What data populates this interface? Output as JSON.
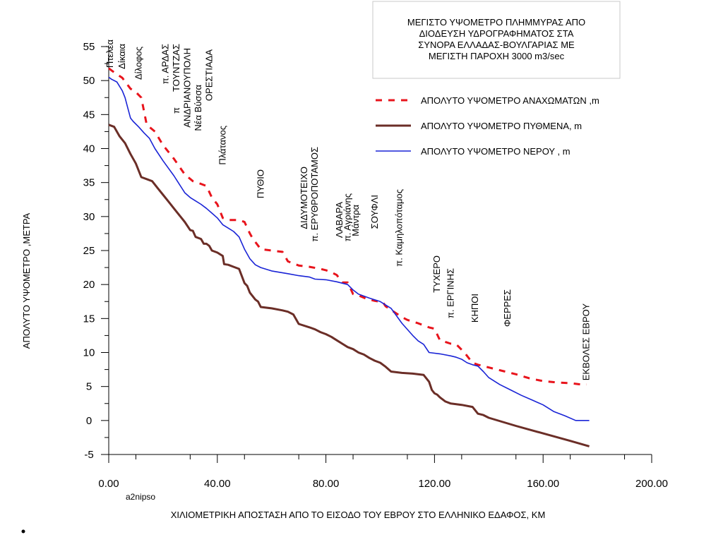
{
  "chart_data": {
    "type": "line",
    "title_lines": [
      "ΜΕΓΙΣΤΟ ΥΨΟΜΕΤΡΟ ΠΛΗΜΜΥΡΑΣ   ΑΠΟ",
      "ΔΙΟΔΕΥΣΗ   ΥΔΡΟΓΡΑΦΗΜΑΤΟΣ    ΣΤΑ",
      "ΣΥΝΟΡΑ ΕΛΛΑΔΑΣ-ΒΟΥΛΓΑΡΙΑΣ  ΜΕ",
      "ΜΕΓΙΣΤΗ  ΠΑΡΟΧΗ    3000   m3/sec"
    ],
    "xlabel": "ΧΙΛΙΟΜΕΤΡΙΚΗ ΑΠΟΣΤΑΣΗ ΑΠΟ ΤΟ  ΕΙΣΟΔΟ ΤΟΥ ΕΒΡΟΥ ΣΤΟ ΕΛΛΗΝΙΚΟ ΕΔΑΦΟΣ, ΚΜ",
    "ylabel": "ΑΠΟΛΥΤΟ  ΥΨΟΜΕΤΡΟ  ,ΜΕΤΡΑ",
    "xlim": [
      0,
      200
    ],
    "ylim": [
      -5,
      55
    ],
    "x_ticks": [
      "0.00",
      "40.00",
      "80.00",
      "120.00",
      "160.00",
      "200.00"
    ],
    "x_tick_values": [
      0,
      40,
      80,
      120,
      160,
      200
    ],
    "y_ticks": [
      "-5",
      "0",
      "5",
      "10",
      "15",
      "20",
      "25",
      "30",
      "35",
      "40",
      "45",
      "50",
      "55"
    ],
    "y_tick_values": [
      -5,
      0,
      5,
      10,
      15,
      20,
      25,
      30,
      35,
      40,
      45,
      50,
      55
    ],
    "note": "a2nipso",
    "legend_position": "right",
    "series": [
      {
        "name": "ΑΠΟΛΥΤΟ  ΥΨΟΜΕΤΡΟ   ΑΝΑΧΩΜΑΤΩΝ ,m",
        "color": "#e8141c",
        "style": "dashed",
        "points": [
          [
            0,
            51.8
          ],
          [
            2,
            51.2
          ],
          [
            5,
            50.4
          ],
          [
            8,
            48.8
          ],
          [
            10,
            48.3
          ],
          [
            12,
            47.5
          ],
          [
            14,
            43.5
          ],
          [
            17,
            42.5
          ],
          [
            20,
            40.5
          ],
          [
            24,
            38.5
          ],
          [
            28,
            36.2
          ],
          [
            31,
            35.2
          ],
          [
            34,
            34.8
          ],
          [
            36,
            34.5
          ],
          [
            38,
            32.8
          ],
          [
            40,
            31.8
          ],
          [
            42,
            29.8
          ],
          [
            44,
            29.5
          ],
          [
            48,
            29.5
          ],
          [
            50,
            29.2
          ],
          [
            52,
            27.5
          ],
          [
            53,
            26.8
          ],
          [
            56,
            25.2
          ],
          [
            60,
            25
          ],
          [
            64,
            24.8
          ],
          [
            66,
            23.4
          ],
          [
            70,
            22.8
          ],
          [
            74,
            22.6
          ],
          [
            78,
            22.3
          ],
          [
            80,
            22.1
          ],
          [
            82,
            21.8
          ],
          [
            84,
            21.4
          ],
          [
            86,
            20.3
          ],
          [
            88,
            20.3
          ],
          [
            90,
            18.6
          ],
          [
            92,
            18.4
          ],
          [
            95,
            17.9
          ],
          [
            98,
            17.6
          ],
          [
            101,
            17.4
          ],
          [
            102,
            16.8
          ],
          [
            105,
            16
          ],
          [
            108,
            15.2
          ],
          [
            110,
            14.8
          ],
          [
            114,
            14.3
          ],
          [
            118,
            13.7
          ],
          [
            120,
            13.5
          ],
          [
            122,
            11.8
          ],
          [
            126,
            11.3
          ],
          [
            128,
            11.2
          ],
          [
            131,
            10
          ],
          [
            134,
            8.5
          ],
          [
            136,
            8.2
          ],
          [
            140,
            7.8
          ],
          [
            145,
            7.3
          ],
          [
            150,
            6.8
          ],
          [
            155,
            6.2
          ],
          [
            160,
            5.8
          ],
          [
            165,
            5.6
          ],
          [
            170,
            5.5
          ],
          [
            174,
            5.3
          ],
          [
            176,
            5.3
          ]
        ]
      },
      {
        "name": "ΑΠΟΛΥΤΟ  ΥΨΟΜΕΤΡΟ ΠΥΘΜΕΝΑ, m",
        "color": "#6b2e27",
        "style": "solid",
        "points": [
          [
            0,
            43.5
          ],
          [
            2,
            43.2
          ],
          [
            4,
            41.8
          ],
          [
            6,
            40.8
          ],
          [
            8,
            39.2
          ],
          [
            10,
            37.8
          ],
          [
            12,
            35.8
          ],
          [
            14,
            35.5
          ],
          [
            16,
            35.2
          ],
          [
            18,
            34.2
          ],
          [
            20,
            33.2
          ],
          [
            22,
            32.2
          ],
          [
            24,
            31.2
          ],
          [
            26,
            30.2
          ],
          [
            28,
            29.2
          ],
          [
            30,
            28
          ],
          [
            31,
            27.9
          ],
          [
            32,
            27
          ],
          [
            34,
            26.7
          ],
          [
            35,
            26
          ],
          [
            36,
            26
          ],
          [
            37,
            25.7
          ],
          [
            38,
            25
          ],
          [
            40,
            24.7
          ],
          [
            42,
            24.2
          ],
          [
            42.5,
            23
          ],
          [
            44,
            22.9
          ],
          [
            46,
            22.6
          ],
          [
            48,
            22.3
          ],
          [
            50,
            20.2
          ],
          [
            51,
            19.8
          ],
          [
            52,
            18.8
          ],
          [
            54,
            17.8
          ],
          [
            55,
            17.5
          ],
          [
            56,
            16.7
          ],
          [
            60,
            16.5
          ],
          [
            64,
            16.2
          ],
          [
            66,
            16
          ],
          [
            68,
            15.6
          ],
          [
            70,
            14.2
          ],
          [
            74,
            13.7
          ],
          [
            76,
            13.4
          ],
          [
            78,
            13
          ],
          [
            80,
            12.7
          ],
          [
            82,
            12.3
          ],
          [
            84,
            11.8
          ],
          [
            86,
            11.3
          ],
          [
            88,
            10.8
          ],
          [
            90,
            10.5
          ],
          [
            92,
            10
          ],
          [
            94,
            9.7
          ],
          [
            96,
            9.2
          ],
          [
            98,
            8.8
          ],
          [
            100,
            8.5
          ],
          [
            102,
            7.9
          ],
          [
            104,
            7.2
          ],
          [
            108,
            7
          ],
          [
            112,
            6.9
          ],
          [
            116,
            6.7
          ],
          [
            118,
            5.7
          ],
          [
            119,
            4.5
          ],
          [
            120,
            4
          ],
          [
            121,
            3.8
          ],
          [
            122,
            3.4
          ],
          [
            124,
            2.8
          ],
          [
            126,
            2.5
          ],
          [
            130,
            2.3
          ],
          [
            134,
            2
          ],
          [
            136,
            1
          ],
          [
            138,
            0.8
          ],
          [
            140,
            0.4
          ],
          [
            150,
            -0.8
          ],
          [
            160,
            -1.9
          ],
          [
            170,
            -3
          ],
          [
            177,
            -3.8
          ]
        ]
      },
      {
        "name": "ΑΠΟΛΥΤΟ ΥΨΟΜΕΤΡΟ ΝΕΡΟΥ , m",
        "color": "#1a24d6",
        "style": "solid",
        "points": [
          [
            0,
            50.5
          ],
          [
            1,
            50.2
          ],
          [
            3,
            49.8
          ],
          [
            5,
            48.5
          ],
          [
            6,
            47.5
          ],
          [
            7,
            46
          ],
          [
            8,
            44.5
          ],
          [
            9,
            44
          ],
          [
            11,
            43.2
          ],
          [
            13,
            42.3
          ],
          [
            15,
            41.5
          ],
          [
            17,
            40
          ],
          [
            20,
            38.2
          ],
          [
            24,
            36
          ],
          [
            28,
            33.5
          ],
          [
            30,
            32.8
          ],
          [
            32,
            32.3
          ],
          [
            34,
            31.8
          ],
          [
            36,
            31.2
          ],
          [
            38,
            30.5
          ],
          [
            40,
            29.8
          ],
          [
            42,
            28.8
          ],
          [
            44,
            28.3
          ],
          [
            46,
            27.8
          ],
          [
            48,
            27
          ],
          [
            50,
            25.2
          ],
          [
            52,
            23.8
          ],
          [
            54,
            22.9
          ],
          [
            56,
            22.5
          ],
          [
            60,
            22
          ],
          [
            66,
            21.6
          ],
          [
            70,
            21.3
          ],
          [
            74,
            21.1
          ],
          [
            76,
            20.8
          ],
          [
            80,
            20.7
          ],
          [
            84,
            20.4
          ],
          [
            88,
            20
          ],
          [
            90,
            19.2
          ],
          [
            92,
            18.6
          ],
          [
            96,
            18
          ],
          [
            100,
            17.5
          ],
          [
            104,
            16.5
          ],
          [
            106,
            15.4
          ],
          [
            108,
            14.3
          ],
          [
            112,
            12.5
          ],
          [
            114,
            11.7
          ],
          [
            116,
            11.2
          ],
          [
            118,
            10
          ],
          [
            122,
            9.8
          ],
          [
            126,
            9.5
          ],
          [
            128,
            9.3
          ],
          [
            130,
            9
          ],
          [
            132,
            8.5
          ],
          [
            134,
            8.2
          ],
          [
            136,
            8
          ],
          [
            138,
            7.2
          ],
          [
            140,
            6.3
          ],
          [
            144,
            5.3
          ],
          [
            148,
            4.5
          ],
          [
            152,
            3.7
          ],
          [
            156,
            3
          ],
          [
            160,
            2.3
          ],
          [
            164,
            1.3
          ],
          [
            168,
            0.7
          ],
          [
            172,
            0
          ],
          [
            174,
            0
          ],
          [
            177,
            0
          ]
        ]
      }
    ],
    "place_labels": [
      {
        "text": "Πτελέα",
        "x": 0.5
      },
      {
        "text": "Δίκαια",
        "x": 5
      },
      {
        "text": "Δίλοφος",
        "x": 11
      },
      {
        "text": "π. ΑΡΔΑΣ",
        "x": 21
      },
      {
        "text": "ΤΟΥΝΤΖΑΣ",
        "x": 25
      },
      {
        "text": "π",
        "x": 25
      },
      {
        "text": "ΑΝΔΡΙΑΝΟΥΠΟΛΗ",
        "x": 29
      },
      {
        "text": "Νέα  Βύσσα",
        "x": 33
      },
      {
        "text": "ΟΡΕΣΤΙΑΔΑ",
        "x": 37
      },
      {
        "text": "Πλάτανος",
        "x": 42
      },
      {
        "text": "ΠΥΘΙΟ",
        "x": 56
      },
      {
        "text": "ΔΙΔΥΜΟΤΕΙΧΟ",
        "x": 72
      },
      {
        "text": "π. ΕΡΥΘΡΟΠΟΤΑΜΟΣ",
        "x": 76
      },
      {
        "text": "ΛΑΒΑΡΑ",
        "x": 85
      },
      {
        "text": "π. Αγριάνης",
        "x": 88
      },
      {
        "text": "Μάντρα",
        "x": 91
      },
      {
        "text": "ΣΟΥΦΛΙ",
        "x": 98
      },
      {
        "text": "π.  Καμηλοπόταμος",
        "x": 107
      },
      {
        "text": "ΤΥΧΕΡΟ",
        "x": 121
      },
      {
        "text": "π.  ΕΡΓΙΝΗΣ",
        "x": 126
      },
      {
        "text": "ΚΗΠΟΙ",
        "x": 135
      },
      {
        "text": "ΦΕΡΡΕΣ",
        "x": 147
      },
      {
        "text": "ΕΚΒΟΛΕΣ  ΕΒΡΟΥ",
        "x": 176
      }
    ]
  }
}
